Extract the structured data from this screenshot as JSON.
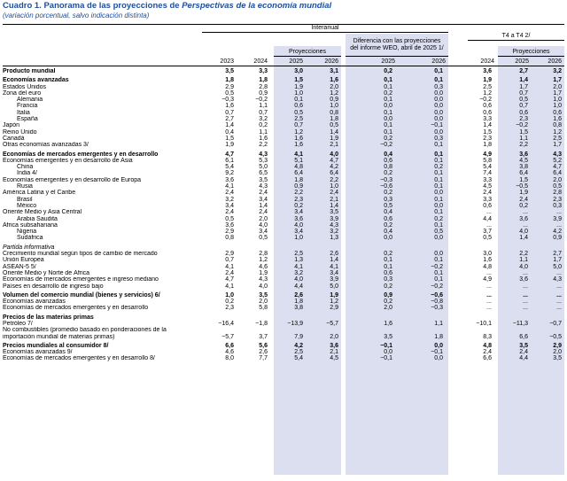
{
  "title": {
    "prefix": "Cuadro 1. Panorama de las proyecciones de ",
    "italic": "Perspectivas de la economía mundial"
  },
  "subtitle": "(variación porcentual, salvo indicación distinta)",
  "headers": {
    "interanual": "Interanual",
    "proyecciones": "Proyecciones",
    "diferencia_1": "Diferencia con las proyecciones",
    "diferencia_2": "del informe WEO, abril de 2025 1/",
    "t4": "T4 a T4 2/",
    "proyecciones_t4": "Proyecciones",
    "years": [
      "2023",
      "2024",
      "2025",
      "2026",
      "2025",
      "2026",
      "2024",
      "2025",
      "2026"
    ]
  },
  "rows": [
    {
      "label": "Producto mundial",
      "v": [
        "3,5",
        "3,3",
        "3,0",
        "3,1",
        "0,2",
        "0,1",
        "3,6",
        "2,7",
        "3,2"
      ],
      "style": "bold"
    },
    {
      "label": "Economías avanzadas",
      "v": [
        "1,8",
        "1,8",
        "1,5",
        "1,6",
        "0,1",
        "0,1",
        "1,9",
        "1,4",
        "1,7"
      ],
      "style": "bold gap"
    },
    {
      "label": "Estados Unidos",
      "v": [
        "2,9",
        "2,8",
        "1,9",
        "2,0",
        "0,1",
        "0,3",
        "2,5",
        "1,7",
        "2,0"
      ],
      "style": ""
    },
    {
      "label": "Zona del euro",
      "v": [
        "0,5",
        "0,9",
        "1,0",
        "1,2",
        "0,2",
        "0,0",
        "1,2",
        "0,7",
        "1,7"
      ],
      "style": ""
    },
    {
      "label": "Alemania",
      "v": [
        "−0,3",
        "−0,2",
        "0,1",
        "0,9",
        "0,1",
        "0,0",
        "−0,2",
        "0,5",
        "1,0"
      ],
      "style": "i1"
    },
    {
      "label": "Francia",
      "v": [
        "1,6",
        "1,1",
        "0,6",
        "1,0",
        "0,0",
        "0,0",
        "0,6",
        "0,7",
        "1,0"
      ],
      "style": "i1"
    },
    {
      "label": "Italia",
      "v": [
        "0,7",
        "0,7",
        "0,5",
        "0,8",
        "0,1",
        "0,0",
        "0,6",
        "0,6",
        "0,6"
      ],
      "style": "i1"
    },
    {
      "label": "España",
      "v": [
        "2,7",
        "3,2",
        "2,5",
        "1,8",
        "0,0",
        "0,0",
        "3,3",
        "2,3",
        "1,6"
      ],
      "style": "i1"
    },
    {
      "label": "Japón",
      "v": [
        "1,4",
        "0,2",
        "0,7",
        "0,5",
        "0,1",
        "−0,1",
        "1,4",
        "−0,2",
        "0,8"
      ],
      "style": ""
    },
    {
      "label": "Reino Unido",
      "v": [
        "0,4",
        "1,1",
        "1,2",
        "1,4",
        "0,1",
        "0,0",
        "1,5",
        "1,5",
        "1,2"
      ],
      "style": ""
    },
    {
      "label": "Canadá",
      "v": [
        "1,5",
        "1,6",
        "1,6",
        "1,9",
        "0,2",
        "0,3",
        "2,3",
        "1,1",
        "2,5"
      ],
      "style": ""
    },
    {
      "label": "Otras economías avanzadas 3/",
      "v": [
        "1,9",
        "2,2",
        "1,6",
        "2,1",
        "−0,2",
        "0,1",
        "1,8",
        "2,2",
        "1,7"
      ],
      "style": ""
    },
    {
      "label": "Economías de mercados emergentes y en desarrollo",
      "v": [
        "4,7",
        "4,3",
        "4,1",
        "4,0",
        "0,4",
        "0,1",
        "4,9",
        "3,6",
        "4,3"
      ],
      "style": "bold gap"
    },
    {
      "label": "Economías emergentes y en desarrollo de Asia",
      "v": [
        "6,1",
        "5,3",
        "5,1",
        "4,7",
        "0,6",
        "0,1",
        "5,8",
        "4,5",
        "5,2"
      ],
      "style": ""
    },
    {
      "label": "China",
      "v": [
        "5,4",
        "5,0",
        "4,8",
        "4,2",
        "0,8",
        "0,2",
        "5,4",
        "3,8",
        "4,7"
      ],
      "style": "i1"
    },
    {
      "label": "India 4/",
      "v": [
        "9,2",
        "6,5",
        "6,4",
        "6,4",
        "0,2",
        "0,1",
        "7,4",
        "6,4",
        "6,4"
      ],
      "style": "i1"
    },
    {
      "label": "Economías emergentes y en desarrollo de Europa",
      "v": [
        "3,6",
        "3,5",
        "1,8",
        "2,2",
        "−0,3",
        "0,1",
        "3,3",
        "1,5",
        "2,0"
      ],
      "style": ""
    },
    {
      "label": "Rusia",
      "v": [
        "4,1",
        "4,3",
        "0,9",
        "1,0",
        "−0,6",
        "0,1",
        "4,5",
        "−0,5",
        "0,5"
      ],
      "style": "i1"
    },
    {
      "label": "América Latina y el Caribe",
      "v": [
        "2,4",
        "2,4",
        "2,2",
        "2,4",
        "0,2",
        "0,0",
        "2,4",
        "1,9",
        "2,8"
      ],
      "style": ""
    },
    {
      "label": "Brasil",
      "v": [
        "3,2",
        "3,4",
        "2,3",
        "2,1",
        "0,3",
        "0,1",
        "3,3",
        "2,4",
        "2,3"
      ],
      "style": "i1"
    },
    {
      "label": "México",
      "v": [
        "3,4",
        "1,4",
        "0,2",
        "1,4",
        "0,5",
        "0,0",
        "0,6",
        "0,2",
        "0,3"
      ],
      "style": "i1"
    },
    {
      "label": "Oriente Medio y Asia Central",
      "v": [
        "2,4",
        "2,4",
        "3,4",
        "3,5",
        "0,4",
        "0,1",
        "...",
        "...",
        "..."
      ],
      "style": ""
    },
    {
      "label": "Arabia Saudita",
      "v": [
        "0,5",
        "2,0",
        "3,6",
        "3,9",
        "0,6",
        "0,2",
        "4,4",
        "3,6",
        "3,9"
      ],
      "style": "i1"
    },
    {
      "label": "África subsahariana",
      "v": [
        "3,6",
        "4,0",
        "4,0",
        "4,3",
        "0,2",
        "0,1",
        "...",
        "...",
        "..."
      ],
      "style": ""
    },
    {
      "label": "Nigeria",
      "v": [
        "2,9",
        "3,4",
        "3,4",
        "3,2",
        "0,4",
        "0,5",
        "3,7",
        "4,0",
        "4,2"
      ],
      "style": "i1"
    },
    {
      "label": "Sudáfrica",
      "v": [
        "0,8",
        "0,5",
        "1,0",
        "1,3",
        "0,0",
        "0,0",
        "0,5",
        "1,4",
        "0,9"
      ],
      "style": "i1"
    },
    {
      "label": "Partida informativa",
      "v": [
        "",
        "",
        "",
        "",
        "",
        "",
        "",
        "",
        ""
      ],
      "style": "it gap"
    },
    {
      "label": "Crecimiento mundial según tipos de cambio de mercado",
      "v": [
        "2,9",
        "2,8",
        "2,5",
        "2,6",
        "0,2",
        "0,0",
        "3,0",
        "2,2",
        "2,7"
      ],
      "style": ""
    },
    {
      "label": "Unión Europea",
      "v": [
        "0,7",
        "1,2",
        "1,3",
        "1,4",
        "0,1",
        "0,1",
        "1,6",
        "1,1",
        "1,7"
      ],
      "style": ""
    },
    {
      "label": "ASEAN-5 5/",
      "v": [
        "4,1",
        "4,6",
        "4,1",
        "4,1",
        "0,1",
        "−0,2",
        "4,8",
        "4,0",
        "5,0"
      ],
      "style": ""
    },
    {
      "label": "Oriente Medio y Norte de África",
      "v": [
        "2,4",
        "1,9",
        "3,2",
        "3,4",
        "0,6",
        "0,1",
        "...",
        "...",
        "..."
      ],
      "style": ""
    },
    {
      "label": "Economías de mercados emergentes e ingreso mediano",
      "v": [
        "4,7",
        "4,3",
        "4,0",
        "3,9",
        "0,3",
        "0,1",
        "4,9",
        "3,6",
        "4,3"
      ],
      "style": ""
    },
    {
      "label": "Países en desarrollo de ingreso bajo",
      "v": [
        "4,1",
        "4,0",
        "4,4",
        "5,0",
        "0,2",
        "−0,2",
        "...",
        "...",
        "..."
      ],
      "style": ""
    },
    {
      "label": "Volumen del comercio mundial (bienes y servicios) 6/",
      "v": [
        "1,0",
        "3,5",
        "2,6",
        "1,9",
        "0,9",
        "−0,6",
        "...",
        "...",
        "..."
      ],
      "style": "bold gap"
    },
    {
      "label": "Economías avanzadas",
      "v": [
        "0,2",
        "2,0",
        "1,8",
        "1,2",
        "0,2",
        "−0,8",
        "...",
        "...",
        "..."
      ],
      "style": ""
    },
    {
      "label": "Economías de mercados emergentes y en desarrollo",
      "v": [
        "2,3",
        "5,8",
        "3,8",
        "2,9",
        "2,0",
        "−0,3",
        "...",
        "...",
        "..."
      ],
      "style": ""
    },
    {
      "label": "Precios de las materias primas",
      "v": [
        "",
        "",
        "",
        "",
        "",
        "",
        "",
        "",
        ""
      ],
      "style": "bold gap"
    },
    {
      "label": "Petróleo 7/",
      "v": [
        "−16,4",
        "−1,8",
        "−13,9",
        "−5,7",
        "1,6",
        "1,1",
        "−10,1",
        "−11,3",
        "−0,7"
      ],
      "style": ""
    },
    {
      "label": "No combustibles (promedio basado en ponderaciones de la",
      "v": [
        "",
        "",
        "",
        "",
        "",
        "",
        "",
        "",
        ""
      ],
      "style": ""
    },
    {
      "label": "importación mundial de materias primas)",
      "v": [
        "−5,7",
        "3,7",
        "7,9",
        "2,0",
        "3,5",
        "1,8",
        "8,3",
        "6,6",
        "−0,5"
      ],
      "style": ""
    },
    {
      "label": "Precios mundiales al consumidor 8/",
      "v": [
        "6,6",
        "5,6",
        "4,2",
        "3,6",
        "−0,1",
        "0,0",
        "4,8",
        "3,5",
        "2,9"
      ],
      "style": "bold gap"
    },
    {
      "label": "Economías avanzadas 9/",
      "v": [
        "4,6",
        "2,6",
        "2,5",
        "2,1",
        "0,0",
        "−0,1",
        "2,4",
        "2,4",
        "2,0"
      ],
      "style": ""
    },
    {
      "label": "Economías de mercados emergentes y en desarrollo 8/",
      "v": [
        "8,0",
        "7,7",
        "5,4",
        "4,5",
        "−0,1",
        "0,0",
        "6,6",
        "4,4",
        "3,5"
      ],
      "style": ""
    }
  ]
}
